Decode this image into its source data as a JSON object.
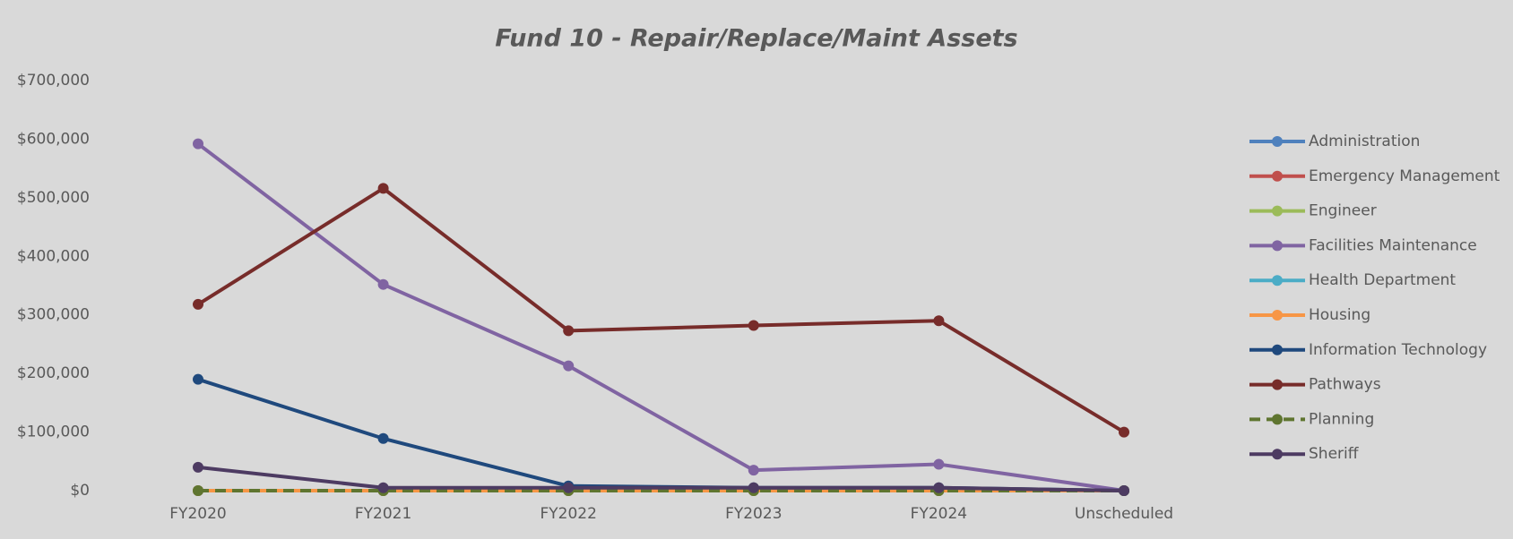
{
  "chart_data": {
    "type": "line",
    "title": "Fund 10 - Repair/Replace/Maint Assets",
    "categories": [
      "FY2020",
      "FY2021",
      "FY2022",
      "FY2023",
      "FY2024",
      "Unscheduled"
    ],
    "ylim": [
      0,
      700000
    ],
    "yticks": [
      {
        "value": 0,
        "label": "$0"
      },
      {
        "value": 100000,
        "label": "$100,000"
      },
      {
        "value": 200000,
        "label": "$200,000"
      },
      {
        "value": 300000,
        "label": "$300,000"
      },
      {
        "value": 400000,
        "label": "$400,000"
      },
      {
        "value": 500000,
        "label": "$500,000"
      },
      {
        "value": 600000,
        "label": "$600,000"
      },
      {
        "value": 700000,
        "label": "$700,000"
      }
    ],
    "legend": "right",
    "series": [
      {
        "name": "Administration",
        "color": "#4f81bd",
        "values": [
          0,
          0,
          0,
          0,
          0,
          0
        ]
      },
      {
        "name": "Emergency Management",
        "color": "#c0504d",
        "values": [
          0,
          0,
          0,
          0,
          0,
          0
        ]
      },
      {
        "name": "Engineer",
        "color": "#9bbb59",
        "values": [
          0,
          0,
          0,
          0,
          0,
          0
        ]
      },
      {
        "name": "Facilities Maintenance",
        "color": "#8064a2",
        "values": [
          592000,
          352000,
          213000,
          35000,
          45000,
          0
        ]
      },
      {
        "name": "Health Department",
        "color": "#4bacc6",
        "values": [
          0,
          0,
          0,
          0,
          0,
          0
        ]
      },
      {
        "name": "Housing",
        "color": "#f79646",
        "values": [
          0,
          0,
          0,
          0,
          0,
          0
        ]
      },
      {
        "name": "Information Technology",
        "color": "#1f497d",
        "values": [
          190000,
          89000,
          8000,
          5000,
          5000,
          0
        ]
      },
      {
        "name": "Pathways",
        "color": "#772c2a",
        "values": [
          318000,
          516000,
          273000,
          282000,
          290000,
          100000
        ]
      },
      {
        "name": "Planning",
        "color": "#5f7530",
        "dashed": true,
        "values": [
          0,
          0,
          0,
          0,
          0,
          0
        ]
      },
      {
        "name": "Sheriff",
        "color": "#4d3b62",
        "values": [
          40000,
          5000,
          5000,
          5000,
          5000,
          0
        ]
      }
    ]
  }
}
